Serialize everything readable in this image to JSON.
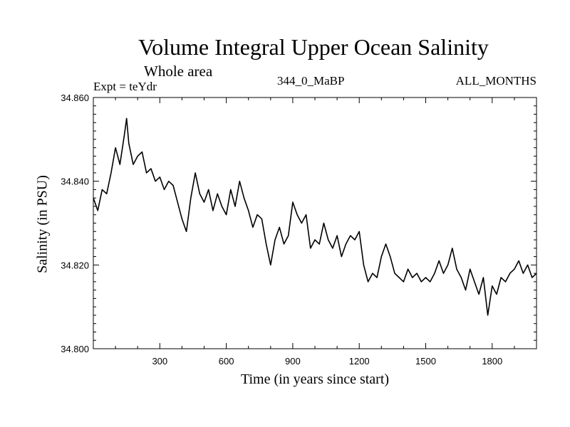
{
  "chart_data": {
    "type": "line",
    "title": "Volume Integral Upper Ocean Salinity",
    "subtitle": "Whole area",
    "experiment": "Expt = teYdr",
    "run_id": "344_0_MaBP",
    "months": "ALL_MONTHS",
    "xlabel": "Time (in years since start)",
    "ylabel": "Salinity (in PSU)",
    "xlim": [
      0,
      2000
    ],
    "ylim": [
      34.8,
      34.86
    ],
    "xticks": [
      300,
      600,
      900,
      1200,
      1500,
      1800
    ],
    "xtick_labels": [
      "300",
      "600",
      "900",
      "1200",
      "1500",
      "1800"
    ],
    "yticks": [
      34.8,
      34.82,
      34.84,
      34.86
    ],
    "ytick_labels": [
      "34.800",
      "34.820",
      "34.840",
      "34.860"
    ],
    "series": [
      {
        "name": "salinity",
        "x": [
          0,
          20,
          40,
          60,
          80,
          100,
          120,
          140,
          150,
          160,
          180,
          200,
          220,
          240,
          260,
          280,
          300,
          320,
          340,
          360,
          380,
          400,
          420,
          440,
          460,
          480,
          500,
          520,
          540,
          560,
          580,
          600,
          620,
          640,
          660,
          680,
          700,
          720,
          740,
          760,
          780,
          800,
          820,
          840,
          860,
          880,
          900,
          920,
          940,
          960,
          980,
          1000,
          1020,
          1040,
          1060,
          1080,
          1100,
          1120,
          1140,
          1160,
          1180,
          1200,
          1220,
          1240,
          1260,
          1280,
          1300,
          1320,
          1340,
          1360,
          1380,
          1400,
          1420,
          1440,
          1460,
          1480,
          1500,
          1520,
          1540,
          1560,
          1580,
          1600,
          1620,
          1640,
          1660,
          1680,
          1700,
          1720,
          1740,
          1760,
          1780,
          1800,
          1820,
          1840,
          1860,
          1880,
          1900,
          1920,
          1940,
          1960,
          1980,
          2000
        ],
        "values": [
          34.836,
          34.833,
          34.838,
          34.837,
          34.842,
          34.848,
          34.844,
          34.851,
          34.855,
          34.849,
          34.844,
          34.846,
          34.847,
          34.842,
          34.843,
          34.84,
          34.841,
          34.838,
          34.84,
          34.839,
          34.835,
          34.831,
          34.828,
          34.836,
          34.842,
          34.837,
          34.835,
          34.838,
          34.833,
          34.837,
          34.834,
          34.832,
          34.838,
          34.834,
          34.84,
          34.836,
          34.833,
          34.829,
          34.832,
          34.831,
          34.825,
          34.82,
          34.826,
          34.829,
          34.825,
          34.827,
          34.835,
          34.832,
          34.83,
          34.832,
          34.824,
          34.826,
          34.825,
          34.83,
          34.826,
          34.824,
          34.827,
          34.822,
          34.825,
          34.827,
          34.826,
          34.828,
          34.82,
          34.816,
          34.818,
          34.817,
          34.822,
          34.825,
          34.822,
          34.818,
          34.817,
          34.816,
          34.819,
          34.817,
          34.818,
          34.816,
          34.817,
          34.816,
          34.818,
          34.821,
          34.818,
          34.82,
          34.824,
          34.819,
          34.817,
          34.814,
          34.819,
          34.816,
          34.813,
          34.817,
          34.808,
          34.815,
          34.813,
          34.817,
          34.816,
          34.818,
          34.819,
          34.821,
          34.818,
          34.82,
          34.817,
          34.818
        ]
      }
    ]
  }
}
